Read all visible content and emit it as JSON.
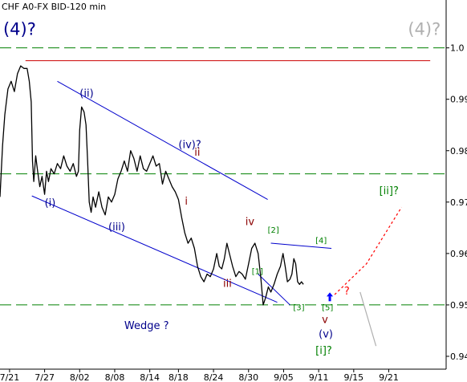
{
  "chart_data": {
    "type": "line",
    "title": "CHF A0-FX BID-120 min",
    "x_labels": [
      "7/21",
      "7/27",
      "8/02",
      "8/08",
      "8/14",
      "8/18",
      "8/24",
      "8/30",
      "9/05",
      "9/11",
      "9/15",
      "9/21"
    ],
    "y_ticks": [
      "1.0",
      "0.99",
      "0.98",
      "0.97",
      "0.96",
      "0.95",
      "0.94"
    ],
    "ylim": [
      0.9375,
      1.0065
    ],
    "xlim": [
      0,
      140
    ],
    "x_label_positions": [
      3,
      14,
      25,
      36,
      47,
      56,
      67,
      78,
      89,
      100,
      111,
      122
    ],
    "grid": false,
    "series": [
      {
        "values": [
          [
            0,
            0.971
          ],
          [
            0.8,
            0.981
          ],
          [
            1.5,
            0.987
          ],
          [
            2.5,
            0.992
          ],
          [
            3.5,
            0.9935
          ],
          [
            4.5,
            0.9915
          ],
          [
            5.5,
            0.995
          ],
          [
            6.5,
            0.9965
          ],
          [
            7.5,
            0.996
          ],
          [
            8.5,
            0.996
          ],
          [
            9.2,
            0.9935
          ],
          [
            9.8,
            0.9895
          ],
          [
            10.2,
            0.978
          ],
          [
            10.6,
            0.974
          ],
          [
            11.2,
            0.979
          ],
          [
            11.8,
            0.976
          ],
          [
            12.5,
            0.973
          ],
          [
            13.2,
            0.975
          ],
          [
            14.0,
            0.9715
          ],
          [
            14.6,
            0.976
          ],
          [
            15.2,
            0.974
          ],
          [
            16,
            0.9765
          ],
          [
            17,
            0.9755
          ],
          [
            18,
            0.9775
          ],
          [
            19,
            0.9765
          ],
          [
            20,
            0.979
          ],
          [
            21,
            0.977
          ],
          [
            22,
            0.976
          ],
          [
            23,
            0.9775
          ],
          [
            24,
            0.975
          ],
          [
            24.6,
            0.976
          ],
          [
            25.0,
            0.984
          ],
          [
            25.6,
            0.9885
          ],
          [
            26.4,
            0.9875
          ],
          [
            27.0,
            0.985
          ],
          [
            27.5,
            0.978
          ],
          [
            28.0,
            0.97
          ],
          [
            28.6,
            0.968
          ],
          [
            29.2,
            0.971
          ],
          [
            30.0,
            0.969
          ],
          [
            31,
            0.972
          ],
          [
            32,
            0.969
          ],
          [
            33,
            0.9675
          ],
          [
            34,
            0.971
          ],
          [
            35,
            0.97
          ],
          [
            36,
            0.9715
          ],
          [
            37,
            0.9745
          ],
          [
            38,
            0.976
          ],
          [
            39,
            0.978
          ],
          [
            40,
            0.976
          ],
          [
            41,
            0.98
          ],
          [
            42,
            0.9785
          ],
          [
            43,
            0.976
          ],
          [
            44,
            0.979
          ],
          [
            45,
            0.9765
          ],
          [
            46,
            0.976
          ],
          [
            47,
            0.9775
          ],
          [
            48,
            0.979
          ],
          [
            49,
            0.977
          ],
          [
            50,
            0.9775
          ],
          [
            51,
            0.9735
          ],
          [
            52,
            0.976
          ],
          [
            53,
            0.9745
          ],
          [
            54,
            0.973
          ],
          [
            55,
            0.972
          ],
          [
            56,
            0.9705
          ],
          [
            57,
            0.967
          ],
          [
            58,
            0.964
          ],
          [
            59,
            0.962
          ],
          [
            60,
            0.963
          ],
          [
            61,
            0.961
          ],
          [
            62,
            0.9575
          ],
          [
            63,
            0.9555
          ],
          [
            64,
            0.9545
          ],
          [
            65,
            0.956
          ],
          [
            66,
            0.9555
          ],
          [
            67,
            0.957
          ],
          [
            68,
            0.96
          ],
          [
            68.8,
            0.9575
          ],
          [
            69.6,
            0.957
          ],
          [
            70.4,
            0.959
          ],
          [
            71.2,
            0.962
          ],
          [
            72,
            0.96
          ],
          [
            73,
            0.9575
          ],
          [
            74,
            0.9555
          ],
          [
            75,
            0.9565
          ],
          [
            76,
            0.956
          ],
          [
            77,
            0.955
          ],
          [
            78,
            0.958
          ],
          [
            79,
            0.961
          ],
          [
            80,
            0.962
          ],
          [
            81,
            0.96
          ],
          [
            81.8,
            0.9555
          ],
          [
            82.6,
            0.95
          ],
          [
            83.4,
            0.9515
          ],
          [
            84.2,
            0.9535
          ],
          [
            85,
            0.9525
          ],
          [
            86,
            0.954
          ],
          [
            87,
            0.956
          ],
          [
            88,
            0.9575
          ],
          [
            88.8,
            0.96
          ],
          [
            89.5,
            0.9575
          ],
          [
            90.2,
            0.9545
          ],
          [
            91,
            0.955
          ],
          [
            91.6,
            0.956
          ],
          [
            92.2,
            0.959
          ],
          [
            92.8,
            0.958
          ],
          [
            93.4,
            0.9545
          ],
          [
            94.0,
            0.954
          ],
          [
            94.6,
            0.9545
          ],
          [
            95.2,
            0.954
          ]
        ]
      }
    ],
    "reference_lines": [
      {
        "y": 1.0,
        "color": "#008000",
        "style": "dashed",
        "x": [
          0,
          140
        ]
      },
      {
        "y": 0.9755,
        "color": "#008000",
        "style": "dashed",
        "x": [
          0,
          140
        ]
      },
      {
        "y": 0.95,
        "color": "#008000",
        "style": "dashed",
        "x": [
          0,
          140
        ]
      },
      {
        "y": 0.9975,
        "color": "#cc0000",
        "style": "solid",
        "x": [
          8,
          135
        ]
      }
    ],
    "trend_lines": [
      {
        "x1": 18,
        "y1": 0.9935,
        "x2": 84,
        "y2": 0.9705,
        "color": "#0000cc"
      },
      {
        "x1": 10,
        "y1": 0.9712,
        "x2": 87,
        "y2": 0.9505,
        "color": "#0000cc"
      },
      {
        "x1": 85,
        "y1": 0.962,
        "x2": 104,
        "y2": 0.961,
        "color": "#0000cc"
      },
      {
        "x1": 81,
        "y1": 0.956,
        "x2": 91,
        "y2": 0.95,
        "color": "#0000cc"
      }
    ],
    "projections": [
      {
        "points": [
          [
            105,
            0.952
          ],
          [
            115,
            0.958
          ],
          [
            126,
            0.969
          ]
        ],
        "color": "#ff0000",
        "style": "dotted"
      },
      {
        "points": [
          [
            113,
            0.9525
          ],
          [
            118,
            0.942
          ]
        ],
        "color": "#b0b0b0",
        "style": "solid"
      }
    ],
    "annotations": [
      {
        "text": "(4)?",
        "x": 1,
        "y": 1.0025,
        "color": "#00008b",
        "size": "big"
      },
      {
        "text": "(4)?",
        "x": 128,
        "y": 1.0025,
        "color": "#b0b0b0",
        "size": "big"
      },
      {
        "text": "(ii)",
        "x": 25,
        "y": 0.9905,
        "color": "#00008b",
        "size": "normal"
      },
      {
        "text": "(iv)?",
        "x": 56,
        "y": 0.9805,
        "color": "#00008b",
        "size": "normal"
      },
      {
        "text": "ii",
        "x": 61,
        "y": 0.979,
        "color": "#8b0000",
        "size": "normal"
      },
      {
        "text": "(i)",
        "x": 14,
        "y": 0.9692,
        "color": "#00008b",
        "size": "normal"
      },
      {
        "text": "i",
        "x": 58,
        "y": 0.9695,
        "color": "#8b0000",
        "size": "normal"
      },
      {
        "text": "(iii)",
        "x": 34,
        "y": 0.9645,
        "color": "#00008b",
        "size": "normal"
      },
      {
        "text": "iv",
        "x": 77,
        "y": 0.9655,
        "color": "#8b0000",
        "size": "normal"
      },
      {
        "text": "[2]",
        "x": 84,
        "y": 0.964,
        "color": "#008000",
        "size": "small"
      },
      {
        "text": "[4]",
        "x": 99,
        "y": 0.962,
        "color": "#008000",
        "size": "small"
      },
      {
        "text": "[1]",
        "x": 79,
        "y": 0.956,
        "color": "#008000",
        "size": "small"
      },
      {
        "text": "iii",
        "x": 70,
        "y": 0.9535,
        "color": "#8b0000",
        "size": "normal"
      },
      {
        "text": "[3]",
        "x": 92,
        "y": 0.949,
        "color": "#008000",
        "size": "small"
      },
      {
        "text": "[5]",
        "x": 101,
        "y": 0.949,
        "color": "#008000",
        "size": "small"
      },
      {
        "text": "?",
        "x": 108,
        "y": 0.952,
        "color": "#ff0000",
        "size": "normal"
      },
      {
        "text": "v",
        "x": 101,
        "y": 0.9465,
        "color": "#8b0000",
        "size": "normal"
      },
      {
        "text": "(v)",
        "x": 100,
        "y": 0.9437,
        "color": "#00008b",
        "size": "normal"
      },
      {
        "text": "[i]?",
        "x": 99,
        "y": 0.9405,
        "color": "#008000",
        "size": "normal"
      },
      {
        "text": "[ii]?",
        "x": 119,
        "y": 0.9715,
        "color": "#008000",
        "size": "normal"
      },
      {
        "text": "Wedge ?",
        "x": 39,
        "y": 0.9453,
        "color": "#00008b",
        "size": "normal"
      }
    ],
    "markers": [
      {
        "type": "arrow-up",
        "x": 103.5,
        "y": 0.9515,
        "color": "#0000ff"
      }
    ]
  }
}
